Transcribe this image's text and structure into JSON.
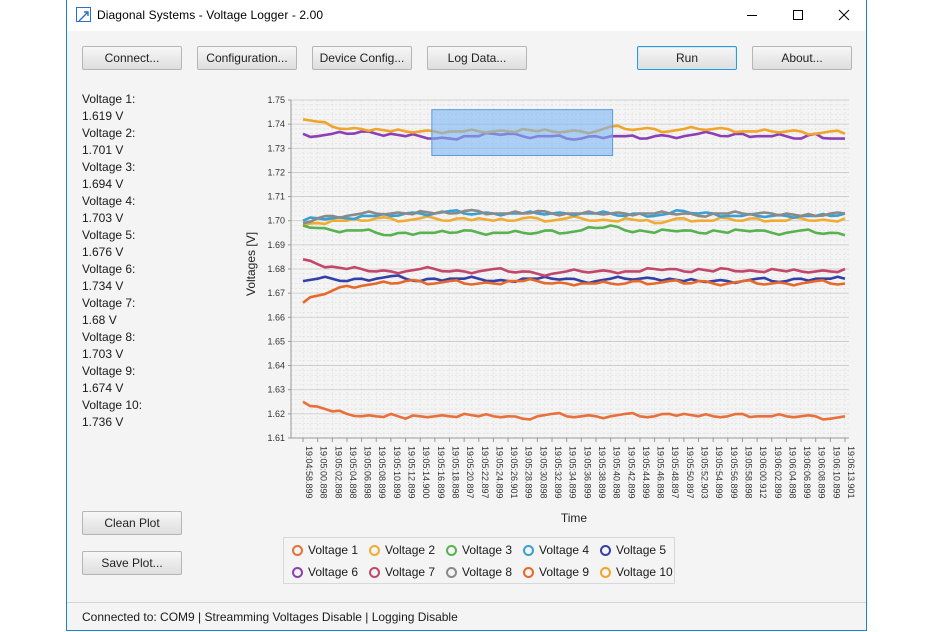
{
  "window": {
    "title": "Diagonal Systems - Voltage Logger - 2.00",
    "minimize_icon": "minimize-icon",
    "maximize_icon": "maximize-icon",
    "close_icon": "close-icon",
    "border_color": "#1883d7"
  },
  "toolbar": {
    "connect": "Connect...",
    "configuration": "Configuration...",
    "device_config": "Device Config...",
    "log_data": "Log Data...",
    "run": "Run",
    "about": "About..."
  },
  "readings": [
    {
      "label": "Voltage 1:",
      "value": "1.619 V"
    },
    {
      "label": "Voltage 2:",
      "value": "1.701 V"
    },
    {
      "label": "Voltage 3:",
      "value": "1.694 V"
    },
    {
      "label": "Voltage 4:",
      "value": "1.703 V"
    },
    {
      "label": "Voltage 5:",
      "value": "1.676 V"
    },
    {
      "label": "Voltage 6:",
      "value": "1.734 V"
    },
    {
      "label": "Voltage 7:",
      "value": "1.68 V"
    },
    {
      "label": "Voltage 8:",
      "value": "1.703 V"
    },
    {
      "label": "Voltage 9:",
      "value": "1.674 V"
    },
    {
      "label": "Voltage 10:",
      "value": "1.736 V"
    }
  ],
  "plot_buttons": {
    "clean": "Clean Plot",
    "save": "Save Plot..."
  },
  "status_bar": "Connected to: COM9 | Streamming Voltages Disable | Logging Disable",
  "chart_data": {
    "type": "line",
    "xlabel": "Time",
    "ylabel": "Voltages [V]",
    "ylim": [
      1.61,
      1.75
    ],
    "yticks": [
      "1.75",
      "1.74",
      "1.73",
      "1.72",
      "1.71",
      "1.70",
      "1.69",
      "1.68",
      "1.67",
      "1.66",
      "1.65",
      "1.64",
      "1.63",
      "1.62",
      "1.61"
    ],
    "xticks": [
      "19:04:58.899",
      "19:05:00.898",
      "19:05:02.898",
      "19:05:04.898",
      "19:05:06.898",
      "19:05:08.899",
      "19:05:10.899",
      "19:05:12.899",
      "19:05:14.900",
      "19:05:16.899",
      "19:05:18.898",
      "19:05:20.897",
      "19:05:22.897",
      "19:05:24.899",
      "19:05:26.901",
      "19:05:28.899",
      "19:05:30.898",
      "19:05:32.899",
      "19:05:34.899",
      "19:05:36.899",
      "19:05:38.899",
      "19:05:40.898",
      "19:05:42.899",
      "19:05:44.899",
      "19:05:46.898",
      "19:05:48.897",
      "19:05:50.897",
      "19:05:52.903",
      "19:05:54.899",
      "19:05:56.899",
      "19:05:58.898",
      "19:06:00.912",
      "19:06:02.899",
      "19:06:04.898",
      "19:06:06.899",
      "19:06:08.899",
      "19:06:10.899",
      "19:06:13.901"
    ],
    "grid": true,
    "legend_position": "bottom",
    "selection_highlight": {
      "from": "19:05:16.899",
      "to": "19:05:40.898",
      "y_range": [
        1.727,
        1.746
      ],
      "color": "#7ab6f5"
    },
    "series": [
      {
        "name": "Voltage 1",
        "color": "#e8703a",
        "base": 1.619,
        "values": [
          1.625,
          1.623,
          1.621,
          1.62,
          1.619,
          1.619,
          1.62,
          1.618,
          1.619,
          1.619,
          1.619,
          1.62,
          1.619,
          1.619,
          1.619,
          1.618,
          1.619,
          1.62,
          1.619,
          1.619,
          1.619,
          1.619,
          1.62,
          1.619,
          1.619,
          1.62,
          1.62,
          1.619,
          1.619,
          1.619,
          1.62,
          1.619,
          1.619,
          1.619,
          1.619,
          1.619,
          1.618,
          1.619
        ]
      },
      {
        "name": "Voltage 2",
        "color": "#f0ac32",
        "base": 1.701,
        "values": [
          1.698,
          1.699,
          1.7,
          1.7,
          1.7,
          1.701,
          1.701,
          1.7,
          1.701,
          1.701,
          1.7,
          1.701,
          1.701,
          1.7,
          1.7,
          1.701,
          1.701,
          1.7,
          1.701,
          1.701,
          1.7,
          1.7,
          1.701,
          1.7,
          1.699,
          1.7,
          1.701,
          1.7,
          1.7,
          1.701,
          1.7,
          1.701,
          1.7,
          1.7,
          1.701,
          1.7,
          1.7,
          1.701
        ]
      },
      {
        "name": "Voltage 3",
        "color": "#58b24f",
        "base": 1.694,
        "values": [
          1.698,
          1.697,
          1.696,
          1.696,
          1.696,
          1.695,
          1.694,
          1.695,
          1.695,
          1.695,
          1.695,
          1.696,
          1.695,
          1.695,
          1.695,
          1.695,
          1.695,
          1.696,
          1.695,
          1.696,
          1.697,
          1.698,
          1.696,
          1.696,
          1.695,
          1.696,
          1.696,
          1.695,
          1.696,
          1.695,
          1.696,
          1.696,
          1.695,
          1.695,
          1.696,
          1.695,
          1.695,
          1.694
        ]
      },
      {
        "name": "Voltage 4",
        "color": "#3a9fd1",
        "base": 1.703,
        "values": [
          1.7,
          1.701,
          1.701,
          1.701,
          1.702,
          1.702,
          1.702,
          1.703,
          1.703,
          1.703,
          1.704,
          1.703,
          1.703,
          1.703,
          1.703,
          1.703,
          1.703,
          1.703,
          1.703,
          1.703,
          1.703,
          1.703,
          1.702,
          1.703,
          1.702,
          1.703,
          1.704,
          1.703,
          1.703,
          1.702,
          1.702,
          1.702,
          1.702,
          1.702,
          1.702,
          1.702,
          1.702,
          1.703
        ]
      },
      {
        "name": "Voltage 5",
        "color": "#3440a8",
        "base": 1.676,
        "values": [
          1.675,
          1.676,
          1.676,
          1.675,
          1.676,
          1.676,
          1.677,
          1.676,
          1.675,
          1.676,
          1.676,
          1.676,
          1.676,
          1.675,
          1.675,
          1.676,
          1.676,
          1.676,
          1.676,
          1.675,
          1.675,
          1.676,
          1.676,
          1.676,
          1.676,
          1.676,
          1.675,
          1.675,
          1.675,
          1.675,
          1.675,
          1.676,
          1.675,
          1.675,
          1.676,
          1.676,
          1.676,
          1.676
        ]
      },
      {
        "name": "Voltage 6",
        "color": "#8d3fb5",
        "base": 1.734,
        "values": [
          1.736,
          1.735,
          1.736,
          1.736,
          1.737,
          1.736,
          1.736,
          1.735,
          1.735,
          1.734,
          1.734,
          1.735,
          1.735,
          1.736,
          1.736,
          1.735,
          1.735,
          1.735,
          1.734,
          1.734,
          1.735,
          1.735,
          1.735,
          1.734,
          1.735,
          1.735,
          1.735,
          1.736,
          1.736,
          1.735,
          1.736,
          1.735,
          1.735,
          1.735,
          1.734,
          1.736,
          1.734,
          1.734
        ]
      },
      {
        "name": "Voltage 7",
        "color": "#c2476a",
        "base": 1.68,
        "values": [
          1.684,
          1.682,
          1.681,
          1.68,
          1.68,
          1.679,
          1.679,
          1.679,
          1.68,
          1.68,
          1.679,
          1.679,
          1.679,
          1.68,
          1.679,
          1.679,
          1.678,
          1.678,
          1.679,
          1.679,
          1.679,
          1.679,
          1.679,
          1.679,
          1.68,
          1.68,
          1.679,
          1.68,
          1.679,
          1.68,
          1.679,
          1.679,
          1.68,
          1.679,
          1.679,
          1.679,
          1.679,
          1.68
        ]
      },
      {
        "name": "Voltage 8",
        "color": "#8a8a8a",
        "base": 1.703,
        "values": [
          1.699,
          1.701,
          1.702,
          1.702,
          1.703,
          1.703,
          1.703,
          1.703,
          1.704,
          1.703,
          1.703,
          1.704,
          1.704,
          1.703,
          1.703,
          1.703,
          1.704,
          1.703,
          1.703,
          1.703,
          1.703,
          1.703,
          1.703,
          1.703,
          1.703,
          1.703,
          1.703,
          1.702,
          1.703,
          1.703,
          1.703,
          1.703,
          1.703,
          1.703,
          1.702,
          1.702,
          1.703,
          1.703
        ]
      },
      {
        "name": "Voltage 9",
        "color": "#e5692b",
        "base": 1.674,
        "values": [
          1.666,
          1.669,
          1.671,
          1.673,
          1.673,
          1.674,
          1.674,
          1.675,
          1.675,
          1.674,
          1.675,
          1.674,
          1.674,
          1.674,
          1.675,
          1.675,
          1.675,
          1.674,
          1.674,
          1.674,
          1.674,
          1.674,
          1.674,
          1.675,
          1.674,
          1.675,
          1.674,
          1.675,
          1.674,
          1.674,
          1.675,
          1.674,
          1.674,
          1.674,
          1.674,
          1.675,
          1.674,
          1.674
        ]
      },
      {
        "name": "Voltage 10",
        "color": "#f0a42a",
        "base": 1.736,
        "values": [
          1.742,
          1.741,
          1.739,
          1.738,
          1.738,
          1.738,
          1.737,
          1.737,
          1.737,
          1.737,
          1.737,
          1.737,
          1.737,
          1.737,
          1.737,
          1.738,
          1.737,
          1.737,
          1.737,
          1.737,
          1.737,
          1.739,
          1.738,
          1.738,
          1.738,
          1.737,
          1.738,
          1.738,
          1.738,
          1.738,
          1.737,
          1.737,
          1.737,
          1.737,
          1.737,
          1.736,
          1.737,
          1.736
        ]
      }
    ]
  }
}
